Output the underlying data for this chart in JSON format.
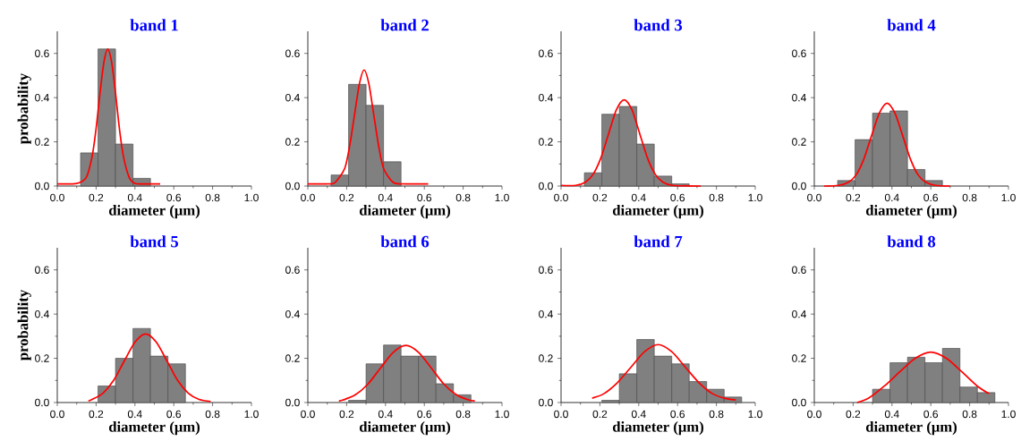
{
  "chart_data": [
    {
      "type": "histogram",
      "title": "band 1",
      "xlabel": "diameter (μm)",
      "ylabel": "probability",
      "xlim": [
        0,
        1
      ],
      "ylim": [
        0,
        0.7
      ],
      "xticks": [
        {
          "value": 0,
          "label": "0.0"
        },
        {
          "value": 0.2,
          "label": "0.2"
        },
        {
          "value": 0.4,
          "label": "0.4"
        },
        {
          "value": 0.6,
          "label": "0.6"
        },
        {
          "value": 0.8,
          "label": "0.8"
        },
        {
          "value": 1,
          "label": "1.0"
        }
      ],
      "yticks": [
        {
          "value": 0,
          "label": "0.0"
        },
        {
          "value": 0.2,
          "label": "0.2"
        },
        {
          "value": 0.4,
          "label": "0.4"
        },
        {
          "value": 0.6,
          "label": "0.6"
        }
      ],
      "series": [
        {
          "type": "histogram",
          "color": "#808080",
          "bins": [
            0.12,
            0.21,
            0.3,
            0.39,
            0.48
          ],
          "values": [
            0.15,
            0.62,
            0.19,
            0.035
          ]
        },
        {
          "type": "line",
          "color": "#ff0000",
          "x": [
            0,
            0.1,
            0.15,
            0.18,
            0.2,
            0.22,
            0.24,
            0.26,
            0.28,
            0.3,
            0.32,
            0.34,
            0.37,
            0.4,
            0.45,
            0.53
          ],
          "values": [
            0.01,
            0.012,
            0.04,
            0.137,
            0.26,
            0.42,
            0.56,
            0.62,
            0.56,
            0.42,
            0.26,
            0.137,
            0.04,
            0.012,
            0.01,
            0.01
          ]
        }
      ]
    },
    {
      "type": "histogram",
      "title": "band 2",
      "xlabel": "diameter (μm)",
      "xlim": [
        0,
        1
      ],
      "ylim": [
        0,
        0.7
      ],
      "xticks": [
        {
          "value": 0,
          "label": "0.0"
        },
        {
          "value": 0.2,
          "label": "0.2"
        },
        {
          "value": 0.4,
          "label": "0.4"
        },
        {
          "value": 0.6,
          "label": "0.6"
        },
        {
          "value": 0.8,
          "label": "0.8"
        },
        {
          "value": 1,
          "label": "1.0"
        }
      ],
      "yticks": [
        {
          "value": 0,
          "label": "0.0"
        },
        {
          "value": 0.2,
          "label": "0.2"
        },
        {
          "value": 0.4,
          "label": "0.4"
        },
        {
          "value": 0.6,
          "label": "0.6"
        }
      ],
      "series": [
        {
          "type": "histogram",
          "color": "#808080",
          "bins": [
            0.12,
            0.21,
            0.3,
            0.39,
            0.48
          ],
          "values": [
            0.05,
            0.46,
            0.365,
            0.11
          ]
        },
        {
          "type": "line",
          "color": "#ff0000",
          "x": [
            0,
            0.1,
            0.14,
            0.19,
            0.215,
            0.24,
            0.265,
            0.29,
            0.315,
            0.34,
            0.365,
            0.39,
            0.44,
            0.5,
            0.62
          ],
          "values": [
            0.01,
            0.01,
            0.016,
            0.08,
            0.18,
            0.32,
            0.46,
            0.525,
            0.46,
            0.32,
            0.18,
            0.08,
            0.016,
            0.01,
            0.01
          ]
        }
      ]
    },
    {
      "type": "histogram",
      "title": "band 3",
      "xlabel": "diameter (μm)",
      "xlim": [
        0,
        1
      ],
      "ylim": [
        0,
        0.7
      ],
      "xticks": [
        {
          "value": 0,
          "label": "0.0"
        },
        {
          "value": 0.2,
          "label": "0.2"
        },
        {
          "value": 0.4,
          "label": "0.4"
        },
        {
          "value": 0.6,
          "label": "0.6"
        },
        {
          "value": 0.8,
          "label": "0.8"
        },
        {
          "value": 1,
          "label": "1.0"
        }
      ],
      "yticks": [
        {
          "value": 0,
          "label": "0.0"
        },
        {
          "value": 0.2,
          "label": "0.2"
        },
        {
          "value": 0.4,
          "label": "0.4"
        },
        {
          "value": 0.6,
          "label": "0.6"
        }
      ],
      "series": [
        {
          "type": "histogram",
          "color": "#808080",
          "bins": [
            0.12,
            0.21,
            0.3,
            0.39,
            0.48,
            0.57,
            0.66
          ],
          "values": [
            0.06,
            0.325,
            0.36,
            0.19,
            0.045,
            0.01
          ]
        },
        {
          "type": "line",
          "color": "#ff0000",
          "x": [
            0,
            0.075,
            0.125,
            0.165,
            0.205,
            0.245,
            0.285,
            0.325,
            0.365,
            0.405,
            0.445,
            0.485,
            0.525,
            0.575,
            0.72
          ],
          "values": [
            0.003,
            0.003,
            0.017,
            0.053,
            0.127,
            0.237,
            0.345,
            0.39,
            0.345,
            0.237,
            0.127,
            0.053,
            0.017,
            0.003,
            0
          ]
        }
      ]
    },
    {
      "type": "histogram",
      "title": "band 4",
      "xlabel": "diameter (μm)",
      "xlim": [
        0,
        1
      ],
      "ylim": [
        0,
        0.7
      ],
      "xticks": [
        {
          "value": 0,
          "label": "0.0"
        },
        {
          "value": 0.2,
          "label": "0.2"
        },
        {
          "value": 0.4,
          "label": "0.4"
        },
        {
          "value": 0.6,
          "label": "0.6"
        },
        {
          "value": 0.8,
          "label": "0.8"
        },
        {
          "value": 1,
          "label": "1.0"
        }
      ],
      "yticks": [
        {
          "value": 0,
          "label": "0.0"
        },
        {
          "value": 0.2,
          "label": "0.2"
        },
        {
          "value": 0.4,
          "label": "0.4"
        },
        {
          "value": 0.6,
          "label": "0.6"
        }
      ],
      "series": [
        {
          "type": "histogram",
          "color": "#808080",
          "bins": [
            0.12,
            0.21,
            0.3,
            0.39,
            0.48,
            0.57,
            0.66
          ],
          "values": [
            0.025,
            0.21,
            0.33,
            0.34,
            0.075,
            0.025
          ]
        },
        {
          "type": "line",
          "color": "#ff0000",
          "x": [
            0.05,
            0.125,
            0.175,
            0.215,
            0.255,
            0.295,
            0.335,
            0.375,
            0.415,
            0.455,
            0.495,
            0.535,
            0.575,
            0.625,
            0.7
          ],
          "values": [
            0,
            0.003,
            0.017,
            0.05,
            0.122,
            0.228,
            0.33,
            0.375,
            0.33,
            0.228,
            0.122,
            0.05,
            0.017,
            0.003,
            0
          ]
        }
      ]
    },
    {
      "type": "histogram",
      "title": "band 5",
      "xlabel": "diameter (μm)",
      "ylabel": "probability",
      "xlim": [
        0,
        1
      ],
      "ylim": [
        0,
        0.7
      ],
      "xticks": [
        {
          "value": 0,
          "label": "0.0"
        },
        {
          "value": 0.2,
          "label": "0.2"
        },
        {
          "value": 0.4,
          "label": "0.4"
        },
        {
          "value": 0.6,
          "label": "0.6"
        },
        {
          "value": 0.8,
          "label": "0.8"
        },
        {
          "value": 1,
          "label": "1.0"
        }
      ],
      "yticks": [
        {
          "value": 0,
          "label": "0.0"
        },
        {
          "value": 0.2,
          "label": "0.2"
        },
        {
          "value": 0.4,
          "label": "0.4"
        },
        {
          "value": 0.6,
          "label": "0.6"
        }
      ],
      "series": [
        {
          "type": "histogram",
          "color": "#808080",
          "bins": [
            0.21,
            0.3,
            0.39,
            0.48,
            0.57,
            0.66
          ],
          "values": [
            0.075,
            0.2,
            0.335,
            0.21,
            0.175
          ]
        },
        {
          "type": "line",
          "color": "#ff0000",
          "x": [
            0.16,
            0.18,
            0.235,
            0.29,
            0.345,
            0.4,
            0.455,
            0.51,
            0.565,
            0.62,
            0.675,
            0.73,
            0.79
          ],
          "values": [
            0.007,
            0.014,
            0.042,
            0.1,
            0.188,
            0.273,
            0.31,
            0.273,
            0.188,
            0.1,
            0.042,
            0.014,
            0.005
          ]
        }
      ]
    },
    {
      "type": "histogram",
      "title": "band 6",
      "xlabel": "diameter (μm)",
      "xlim": [
        0,
        1
      ],
      "ylim": [
        0,
        0.7
      ],
      "xticks": [
        {
          "value": 0,
          "label": "0.0"
        },
        {
          "value": 0.2,
          "label": "0.2"
        },
        {
          "value": 0.4,
          "label": "0.4"
        },
        {
          "value": 0.6,
          "label": "0.6"
        },
        {
          "value": 0.8,
          "label": "0.8"
        },
        {
          "value": 1,
          "label": "1.0"
        }
      ],
      "yticks": [
        {
          "value": 0,
          "label": "0.0"
        },
        {
          "value": 0.2,
          "label": "0.2"
        },
        {
          "value": 0.4,
          "label": "0.4"
        },
        {
          "value": 0.6,
          "label": "0.6"
        }
      ],
      "series": [
        {
          "type": "histogram",
          "color": "#808080",
          "bins": [
            0.21,
            0.3,
            0.39,
            0.48,
            0.57,
            0.66,
            0.75,
            0.84
          ],
          "values": [
            0.01,
            0.175,
            0.26,
            0.21,
            0.21,
            0.085,
            0.035
          ]
        },
        {
          "type": "line",
          "color": "#ff0000",
          "x": [
            0.16,
            0.18,
            0.245,
            0.31,
            0.375,
            0.44,
            0.505,
            0.57,
            0.635,
            0.7,
            0.765,
            0.83,
            0.86
          ],
          "values": [
            0.008,
            0.011,
            0.035,
            0.084,
            0.157,
            0.227,
            0.258,
            0.227,
            0.157,
            0.084,
            0.035,
            0.011,
            0.008
          ]
        }
      ]
    },
    {
      "type": "histogram",
      "title": "band 7",
      "xlabel": "diameter (μm)",
      "xlim": [
        0,
        1
      ],
      "ylim": [
        0,
        0.7
      ],
      "xticks": [
        {
          "value": 0,
          "label": "0.0"
        },
        {
          "value": 0.2,
          "label": "0.2"
        },
        {
          "value": 0.4,
          "label": "0.4"
        },
        {
          "value": 0.6,
          "label": "0.6"
        },
        {
          "value": 0.8,
          "label": "0.8"
        },
        {
          "value": 1,
          "label": "1.0"
        }
      ],
      "yticks": [
        {
          "value": 0,
          "label": "0.0"
        },
        {
          "value": 0.2,
          "label": "0.2"
        },
        {
          "value": 0.4,
          "label": "0.4"
        },
        {
          "value": 0.6,
          "label": "0.6"
        }
      ],
      "series": [
        {
          "type": "histogram",
          "color": "#808080",
          "bins": [
            0.21,
            0.3,
            0.39,
            0.48,
            0.57,
            0.66,
            0.75,
            0.84,
            0.93
          ],
          "values": [
            0.01,
            0.13,
            0.285,
            0.21,
            0.175,
            0.095,
            0.06,
            0.025
          ]
        },
        {
          "type": "line",
          "color": "#ff0000",
          "x": [
            0.16,
            0.22,
            0.29,
            0.36,
            0.43,
            0.5,
            0.57,
            0.64,
            0.71,
            0.78,
            0.84,
            0.9
          ],
          "values": [
            0.02,
            0.04,
            0.09,
            0.16,
            0.23,
            0.262,
            0.23,
            0.16,
            0.09,
            0.04,
            0.02,
            0.012
          ]
        }
      ]
    },
    {
      "type": "histogram",
      "title": "band 8",
      "xlabel": "diameter (μm)",
      "xlim": [
        0,
        1
      ],
      "ylim": [
        0,
        0.7
      ],
      "xticks": [
        {
          "value": 0,
          "label": "0.0"
        },
        {
          "value": 0.2,
          "label": "0.2"
        },
        {
          "value": 0.4,
          "label": "0.4"
        },
        {
          "value": 0.6,
          "label": "0.6"
        },
        {
          "value": 0.8,
          "label": "0.8"
        },
        {
          "value": 1,
          "label": "1.0"
        }
      ],
      "yticks": [
        {
          "value": 0,
          "label": "0.0"
        },
        {
          "value": 0.2,
          "label": "0.2"
        },
        {
          "value": 0.4,
          "label": "0.4"
        },
        {
          "value": 0.6,
          "label": "0.6"
        }
      ],
      "series": [
        {
          "type": "histogram",
          "color": "#808080",
          "bins": [
            0.3,
            0.39,
            0.48,
            0.57,
            0.66,
            0.75,
            0.84,
            0.93
          ],
          "values": [
            0.06,
            0.18,
            0.205,
            0.18,
            0.245,
            0.07,
            0.045
          ]
        },
        {
          "type": "line",
          "color": "#ff0000",
          "x": [
            0.22,
            0.28,
            0.36,
            0.44,
            0.52,
            0.6,
            0.68,
            0.76,
            0.84,
            0.9
          ],
          "values": [
            0,
            0.02,
            0.074,
            0.139,
            0.2,
            0.228,
            0.2,
            0.139,
            0.074,
            0.04
          ]
        }
      ]
    }
  ]
}
